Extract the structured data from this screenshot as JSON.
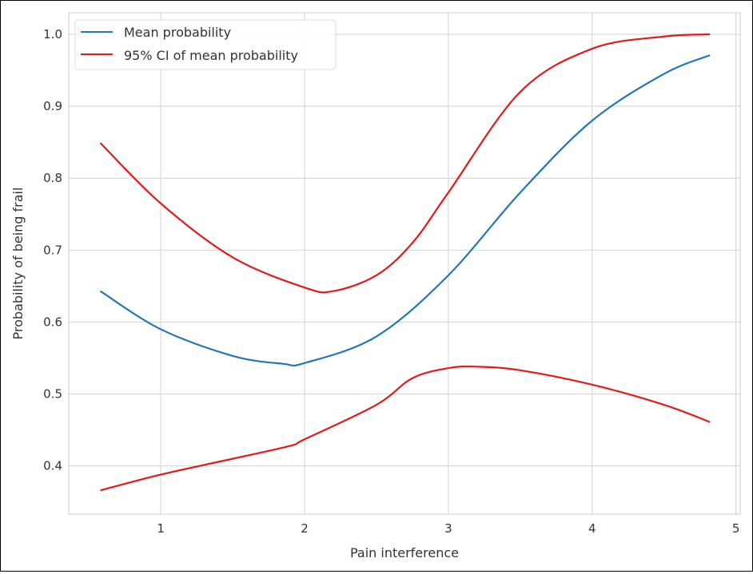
{
  "chart_data": {
    "type": "line",
    "title": "",
    "xlabel": "Pain interference",
    "ylabel": "Probability of being frail",
    "xlim": [
      0.36,
      5.03
    ],
    "ylim": [
      0.333,
      1.03
    ],
    "xticks": [
      1,
      2,
      3,
      4,
      5
    ],
    "yticks": [
      0.4,
      0.5,
      0.6,
      0.7,
      0.8,
      0.9,
      1.0
    ],
    "ytick_labels": [
      "0.4",
      "0.5",
      "0.6",
      "0.7",
      "0.8",
      "0.9",
      "1.0"
    ],
    "grid": true,
    "legend_position": "top-left",
    "series": [
      {
        "name": "Mean probability",
        "color": "#1f77b4",
        "x": [
          0.58,
          1.0,
          1.5,
          1.85,
          2.0,
          2.5,
          3.0,
          3.5,
          4.0,
          4.5,
          4.82
        ],
        "y": [
          0.643,
          0.59,
          0.553,
          0.542,
          0.543,
          0.58,
          0.665,
          0.78,
          0.88,
          0.945,
          0.971
        ]
      },
      {
        "name": "95% CI of mean probability",
        "color": "#e31a1c",
        "x": [
          0.58,
          1.0,
          1.5,
          2.0,
          2.2,
          2.5,
          2.75,
          3.0,
          3.5,
          4.0,
          4.5,
          4.82
        ],
        "y": [
          0.849,
          0.765,
          0.69,
          0.648,
          0.643,
          0.665,
          0.71,
          0.78,
          0.92,
          0.98,
          0.997,
          1.0
        ]
      },
      {
        "color": "#e31a1c",
        "legend": false,
        "x": [
          0.58,
          1.0,
          1.5,
          1.9,
          2.0,
          2.5,
          2.75,
          3.0,
          3.2,
          3.5,
          4.0,
          4.5,
          4.82
        ],
        "y": [
          0.366,
          0.388,
          0.41,
          0.428,
          0.437,
          0.485,
          0.522,
          0.536,
          0.538,
          0.533,
          0.513,
          0.485,
          0.461
        ]
      }
    ]
  }
}
